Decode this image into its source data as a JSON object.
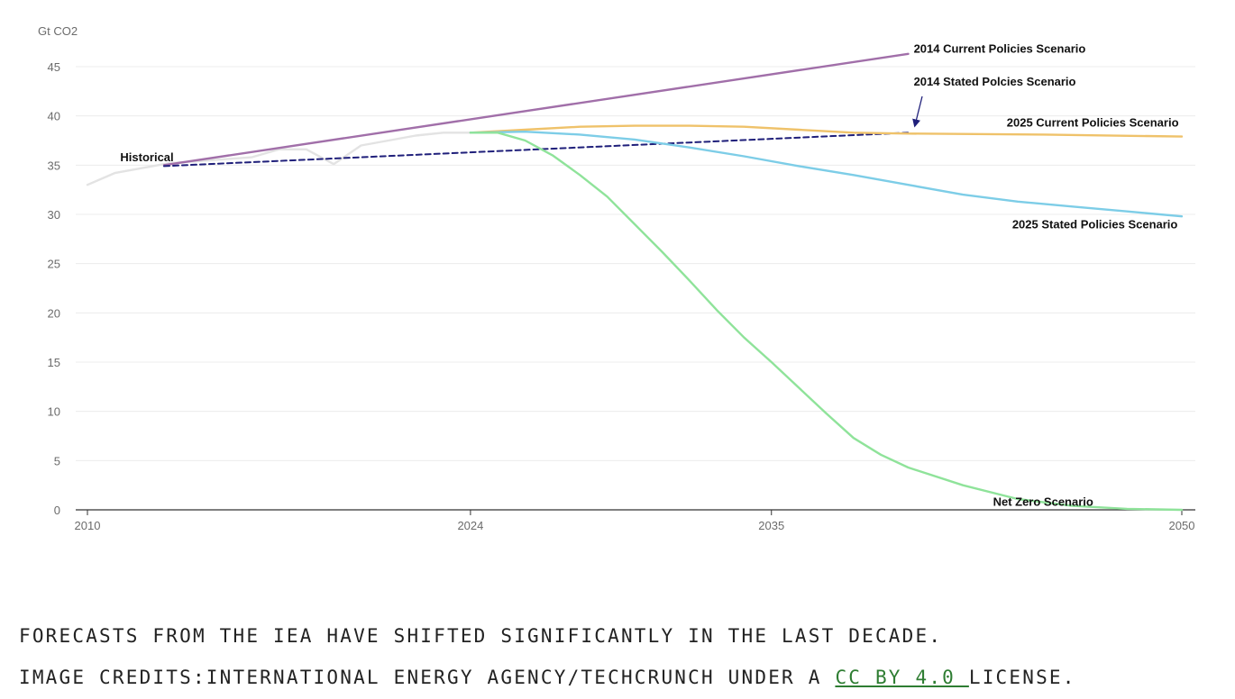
{
  "chart_data": {
    "type": "line",
    "ylabel": "Gt CO2",
    "ylim": [
      0,
      45
    ],
    "yticks": [
      0,
      5,
      10,
      15,
      20,
      25,
      30,
      35,
      40,
      45
    ],
    "xlim": [
      2010,
      2050
    ],
    "xticks": [
      2010,
      2024,
      2035,
      2050
    ],
    "grid": "horizontal",
    "series": [
      {
        "name": "Historical",
        "color": "#e3e3e3",
        "style": "solid",
        "x": [
          2010,
          2011,
          2012,
          2013,
          2014,
          2015,
          2016,
          2017,
          2018,
          2019,
          2020,
          2021,
          2022,
          2023,
          2024
        ],
        "y": [
          33,
          34.2,
          34.7,
          35.2,
          35.4,
          35.6,
          35.8,
          36.6,
          36.6,
          35.1,
          37,
          37.5,
          38,
          38.3,
          38.3
        ]
      },
      {
        "name": "2014 Current Policies Scenario",
        "color": "#a16fa9",
        "style": "solid",
        "x": [
          2012.8,
          2040
        ],
        "y": [
          35,
          46.3
        ]
      },
      {
        "name": "2014 Stated Polcies Scenario",
        "color": "#1f1f7a",
        "style": "dashed",
        "x": [
          2012.8,
          2040
        ],
        "y": [
          34.9,
          38.3
        ]
      },
      {
        "name": "2025 Current Policies Scenario",
        "color": "#efc26a",
        "style": "solid",
        "x": [
          2024,
          2026,
          2028,
          2030,
          2032,
          2034,
          2036,
          2038,
          2040,
          2045,
          2050
        ],
        "y": [
          38.3,
          38.6,
          38.9,
          39,
          39,
          38.9,
          38.6,
          38.3,
          38.2,
          38.1,
          37.9
        ]
      },
      {
        "name": "2025 Stated Policies Scenario",
        "color": "#7dcde7",
        "style": "solid",
        "x": [
          2024,
          2026,
          2028,
          2030,
          2032,
          2034,
          2036,
          2038,
          2040,
          2042,
          2044,
          2046,
          2048,
          2050
        ],
        "y": [
          38.3,
          38.4,
          38.1,
          37.6,
          36.8,
          35.9,
          34.9,
          34,
          33,
          32,
          31.3,
          30.8,
          30.3,
          29.8
        ]
      },
      {
        "name": "Net Zero Scenario",
        "color": "#8fe39a",
        "style": "solid",
        "x": [
          2024,
          2025,
          2026,
          2027,
          2028,
          2029,
          2030,
          2031,
          2032,
          2033,
          2034,
          2035,
          2036,
          2037,
          2038,
          2039,
          2040,
          2042,
          2044,
          2046,
          2048,
          2050
        ],
        "y": [
          38.3,
          38.3,
          37.5,
          36,
          34,
          31.8,
          29,
          26.2,
          23.3,
          20.3,
          17.5,
          15,
          12.4,
          9.8,
          7.3,
          5.6,
          4.3,
          2.5,
          1.1,
          0.4,
          0.1,
          0
        ]
      }
    ],
    "annotations": [
      {
        "text": "Historical",
        "x": 2011.2,
        "y": 35.4
      },
      {
        "text": "2014 Current Policies Scenario",
        "x": 2040.2,
        "y": 46.4
      },
      {
        "text": "2014 Stated Polcies Scenario",
        "x": 2040.2,
        "y": 43.1
      },
      {
        "text": "2025 Current Policies Scenario",
        "x": 2043.6,
        "y": 38.9
      },
      {
        "text": "2025 Stated Policies Scenario",
        "x": 2043.8,
        "y": 28.6
      },
      {
        "text": "Net Zero Scenario",
        "x": 2043.1,
        "y": 0.4
      }
    ]
  },
  "caption": {
    "line1": "FORECASTS FROM THE IEA HAVE SHIFTED SIGNIFICANTLY IN THE LAST DECADE.",
    "credits_prefix": "IMAGE CREDITS:INTERNATIONAL ENERGY AGENCY/TECHCRUNCH UNDER A ",
    "license_link": "CC BY 4.0 ",
    "credits_suffix": "LICENSE."
  }
}
